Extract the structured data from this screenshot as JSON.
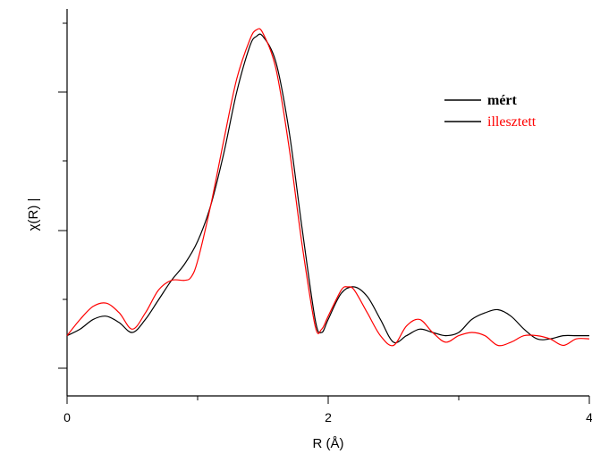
{
  "chart_data": {
    "type": "line",
    "xlabel": "R (Å)",
    "ylabel": "χ(R) |",
    "xlim": [
      0,
      4
    ],
    "ylim": [
      0,
      1.05
    ],
    "x_ticks": [
      0,
      2,
      4
    ],
    "x_tick_labels": [
      "0",
      "2",
      "4"
    ],
    "grid": false,
    "legend_position": "top-right",
    "series": [
      {
        "name": "mért",
        "color": "#000000",
        "x": [
          0,
          0.1,
          0.2,
          0.3,
          0.4,
          0.5,
          0.6,
          0.7,
          0.8,
          0.9,
          1.0,
          1.1,
          1.2,
          1.3,
          1.4,
          1.45,
          1.5,
          1.6,
          1.7,
          1.8,
          1.9,
          1.95,
          2.0,
          2.1,
          2.2,
          2.3,
          2.4,
          2.5,
          2.6,
          2.7,
          2.8,
          2.9,
          3.0,
          3.1,
          3.2,
          3.3,
          3.4,
          3.5,
          3.6,
          3.7,
          3.8,
          3.9,
          4.0
        ],
        "y": [
          0.1,
          0.12,
          0.15,
          0.16,
          0.14,
          0.11,
          0.15,
          0.21,
          0.27,
          0.32,
          0.39,
          0.5,
          0.66,
          0.85,
          0.99,
          1.02,
          1.02,
          0.94,
          0.73,
          0.43,
          0.15,
          0.11,
          0.15,
          0.23,
          0.25,
          0.22,
          0.15,
          0.08,
          0.1,
          0.12,
          0.11,
          0.1,
          0.11,
          0.15,
          0.17,
          0.18,
          0.16,
          0.12,
          0.09,
          0.09,
          0.1,
          0.1,
          0.1
        ]
      },
      {
        "name": "illesztett",
        "color": "#ff0000",
        "x": [
          0,
          0.1,
          0.2,
          0.3,
          0.4,
          0.5,
          0.6,
          0.7,
          0.8,
          0.9,
          0.95,
          1.0,
          1.1,
          1.2,
          1.3,
          1.4,
          1.45,
          1.5,
          1.6,
          1.7,
          1.8,
          1.9,
          1.95,
          2.0,
          2.1,
          2.15,
          2.2,
          2.3,
          2.4,
          2.5,
          2.6,
          2.7,
          2.8,
          2.9,
          3.0,
          3.1,
          3.2,
          3.3,
          3.4,
          3.5,
          3.6,
          3.7,
          3.8,
          3.9,
          4.0
        ],
        "y": [
          0.1,
          0.15,
          0.19,
          0.2,
          0.17,
          0.12,
          0.17,
          0.24,
          0.27,
          0.27,
          0.28,
          0.33,
          0.5,
          0.7,
          0.89,
          1.01,
          1.04,
          1.03,
          0.92,
          0.68,
          0.38,
          0.13,
          0.12,
          0.16,
          0.24,
          0.25,
          0.24,
          0.17,
          0.1,
          0.07,
          0.13,
          0.15,
          0.11,
          0.08,
          0.1,
          0.11,
          0.1,
          0.07,
          0.08,
          0.1,
          0.1,
          0.09,
          0.07,
          0.09,
          0.09
        ]
      }
    ]
  }
}
